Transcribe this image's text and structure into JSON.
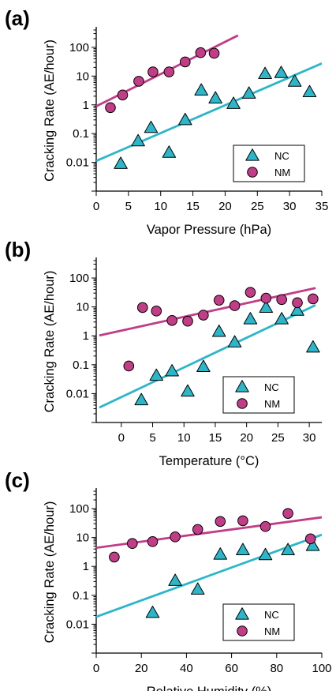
{
  "colors": {
    "nc": "#2bb6c9",
    "nm": "#c23d87",
    "axis": "#000000"
  },
  "chart_data": [
    {
      "panel_label": "(a)",
      "type": "scatter",
      "xlabel": "Vapor Pressure (hPa)",
      "ylabel": "Cracking Rate (AE/hour)",
      "xlim": [
        0,
        35
      ],
      "ylim": [
        0.001,
        400
      ],
      "yscale": "log",
      "xticks": [
        0,
        5,
        10,
        15,
        20,
        25,
        30,
        35
      ],
      "xtick_labels": [
        "0",
        "5",
        "10",
        "15",
        "20",
        "25",
        "30",
        "35"
      ],
      "yticks": [
        0.01,
        0.1,
        1,
        10,
        100
      ],
      "ytick_labels": [
        "0.01",
        "0.1",
        "1",
        "10",
        "100"
      ],
      "legend_position": "bottom-right",
      "series": [
        {
          "name": "NC",
          "marker": "triangle",
          "x": [
            3.8,
            6.5,
            8.5,
            11.3,
            13.8,
            16.3,
            18.5,
            21.3,
            23.7,
            26.2,
            28.7,
            30.8,
            33.1
          ],
          "y": [
            0.009,
            0.055,
            0.16,
            0.022,
            0.3,
            3.2,
            1.7,
            1.1,
            2.5,
            12,
            13,
            6.5,
            2.8
          ],
          "fit_line": {
            "x": [
              0,
              35
            ],
            "y": [
              0.0112,
              27.5
            ]
          }
        },
        {
          "name": "NM",
          "marker": "circle",
          "x": [
            2.2,
            4.1,
            6.6,
            8.8,
            11.3,
            13.8,
            16.2,
            18.3
          ],
          "y": [
            0.8,
            2.2,
            6.6,
            14,
            14,
            31,
            65,
            62
          ],
          "fit_line": {
            "x": [
              0,
              22
            ],
            "y": [
              0.89,
              260
            ]
          }
        }
      ]
    },
    {
      "panel_label": "(b)",
      "type": "scatter",
      "xlabel": "Temperature (°C)",
      "ylabel": "Cracking Rate (AE/hour)",
      "xlim": [
        -4,
        32
      ],
      "ylim": [
        0.001,
        400
      ],
      "yscale": "log",
      "xticks": [
        0,
        5,
        10,
        15,
        20,
        25,
        30
      ],
      "xtick_labels": [
        "0",
        "5",
        "10",
        "15",
        "20",
        "25",
        "30"
      ],
      "yticks": [
        0.01,
        0.1,
        1,
        10,
        100
      ],
      "ytick_labels": [
        "0.01",
        "0.1",
        "1",
        "10",
        "100"
      ],
      "legend_position": "bottom-right",
      "series": [
        {
          "name": "NC",
          "marker": "triangle",
          "x": [
            3.2,
            5.6,
            8.1,
            10.6,
            13.1,
            15.6,
            18.1,
            20.6,
            23.1,
            25.6,
            28.1,
            30.6
          ],
          "y": [
            0.006,
            0.042,
            0.06,
            0.012,
            0.085,
            1.4,
            0.6,
            3.8,
            9.5,
            3.8,
            7.5,
            0.4
          ],
          "fit_line": {
            "x": [
              -3.5,
              31
            ],
            "y": [
              0.0033,
              11.5
            ]
          }
        },
        {
          "name": "NM",
          "marker": "circle",
          "x": [
            1.2,
            3.4,
            5.6,
            8.1,
            10.6,
            13.1,
            15.6,
            18.1,
            20.6,
            23.1,
            25.6,
            28.1,
            30.6
          ],
          "y": [
            0.09,
            9.5,
            7.2,
            3.4,
            3.2,
            5.2,
            17,
            11,
            32,
            20,
            18,
            14,
            19
          ],
          "fit_line": {
            "x": [
              -3.5,
              31
            ],
            "y": [
              1.03,
              45
            ]
          }
        }
      ]
    },
    {
      "panel_label": "(c)",
      "type": "scatter",
      "xlabel": "Relative Humidity (%)",
      "ylabel": "Cracking Rate (AE/hour)",
      "xlim": [
        0,
        100
      ],
      "ylim": [
        0.001,
        400
      ],
      "yscale": "log",
      "xticks": [
        0,
        20,
        40,
        60,
        80,
        100
      ],
      "xtick_labels": [
        "0",
        "20",
        "40",
        "60",
        "80",
        "100"
      ],
      "yticks": [
        0.01,
        0.1,
        1,
        10,
        100
      ],
      "ytick_labels": [
        "0.01",
        "0.1",
        "1",
        "10",
        "100"
      ],
      "legend_position": "bottom-right",
      "series": [
        {
          "name": "NC",
          "marker": "triangle",
          "x": [
            25,
            35,
            45,
            55,
            65,
            75,
            85,
            96
          ],
          "y": [
            0.025,
            0.32,
            0.16,
            2.6,
            3.7,
            2.5,
            3.7,
            5.2
          ],
          "fit_line": {
            "x": [
              0,
              100
            ],
            "y": [
              0.018,
              12.5
            ]
          }
        },
        {
          "name": "NM",
          "marker": "circle",
          "x": [
            8,
            16,
            25,
            35,
            45,
            55,
            65,
            75,
            85,
            95
          ],
          "y": [
            2.1,
            6.2,
            7.2,
            10.5,
            19,
            36,
            38,
            24,
            68,
            9
          ],
          "fit_line": {
            "x": [
              0,
              100
            ],
            "y": [
              4.4,
              50
            ]
          }
        }
      ]
    }
  ]
}
